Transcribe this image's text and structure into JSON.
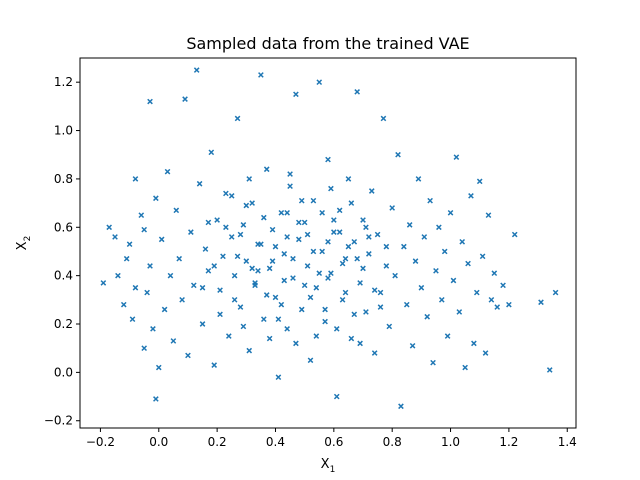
{
  "chart_data": {
    "type": "scatter",
    "title": "Sampled data from the trained VAE",
    "xlabel": {
      "base": "X",
      "sub": "1"
    },
    "ylabel": {
      "base": "X",
      "sub": "2"
    },
    "xlim": [
      -0.27,
      1.43
    ],
    "ylim": [
      -0.23,
      1.3
    ],
    "xticks": [
      -0.2,
      0.0,
      0.2,
      0.4,
      0.6,
      0.8,
      1.0,
      1.2,
      1.4
    ],
    "xtick_labels": [
      "−0.2",
      "0.0",
      "0.2",
      "0.4",
      "0.6",
      "0.8",
      "1.0",
      "1.2",
      "1.4"
    ],
    "yticks": [
      -0.2,
      0.0,
      0.2,
      0.4,
      0.6,
      0.8,
      1.0,
      1.2
    ],
    "ytick_labels": [
      "−0.2",
      "0.0",
      "0.2",
      "0.4",
      "0.6",
      "0.8",
      "1.0",
      "1.2"
    ],
    "grid": false,
    "marker": "x",
    "color": "#1f77b4",
    "series": [
      {
        "points": [
          [
            -0.19,
            0.37
          ],
          [
            -0.17,
            0.6
          ],
          [
            -0.15,
            0.56
          ],
          [
            -0.14,
            0.4
          ],
          [
            -0.12,
            0.28
          ],
          [
            -0.11,
            0.47
          ],
          [
            -0.1,
            0.53
          ],
          [
            -0.09,
            0.22
          ],
          [
            -0.08,
            0.8
          ],
          [
            -0.08,
            0.35
          ],
          [
            -0.06,
            0.65
          ],
          [
            -0.05,
            0.59
          ],
          [
            -0.05,
            0.1
          ],
          [
            -0.04,
            0.33
          ],
          [
            -0.03,
            1.12
          ],
          [
            -0.03,
            0.44
          ],
          [
            -0.02,
            0.18
          ],
          [
            -0.01,
            -0.11
          ],
          [
            -0.01,
            0.72
          ],
          [
            0.0,
            0.02
          ],
          [
            0.01,
            0.55
          ],
          [
            0.02,
            0.26
          ],
          [
            0.03,
            0.83
          ],
          [
            0.04,
            0.4
          ],
          [
            0.05,
            0.13
          ],
          [
            0.06,
            0.67
          ],
          [
            0.07,
            0.47
          ],
          [
            0.08,
            0.3
          ],
          [
            0.09,
            1.13
          ],
          [
            0.1,
            0.07
          ],
          [
            0.11,
            0.58
          ],
          [
            0.12,
            0.36
          ],
          [
            0.13,
            1.25
          ],
          [
            0.14,
            0.78
          ],
          [
            0.15,
            0.2
          ],
          [
            0.16,
            0.51
          ],
          [
            0.17,
            0.42
          ],
          [
            0.18,
            0.91
          ],
          [
            0.19,
            0.03
          ],
          [
            0.2,
            0.63
          ],
          [
            0.21,
            0.34
          ],
          [
            0.22,
            0.48
          ],
          [
            0.23,
            0.74
          ],
          [
            0.24,
            0.15
          ],
          [
            0.25,
            0.56
          ],
          [
            0.26,
            0.4
          ],
          [
            0.27,
            1.05
          ],
          [
            0.28,
            0.27
          ],
          [
            0.29,
            0.61
          ],
          [
            0.3,
            0.46
          ],
          [
            0.31,
            0.09
          ],
          [
            0.32,
            0.7
          ],
          [
            0.33,
            0.37
          ],
          [
            0.34,
            0.53
          ],
          [
            0.35,
            1.23
          ],
          [
            0.36,
            0.22
          ],
          [
            0.37,
            0.84
          ],
          [
            0.38,
            0.43
          ],
          [
            0.39,
            0.59
          ],
          [
            0.4,
            0.31
          ],
          [
            0.41,
            -0.02
          ],
          [
            0.42,
            0.66
          ],
          [
            0.43,
            0.49
          ],
          [
            0.44,
            0.18
          ],
          [
            0.45,
            0.77
          ],
          [
            0.46,
            0.39
          ],
          [
            0.47,
            1.15
          ],
          [
            0.48,
            0.55
          ],
          [
            0.49,
            0.26
          ],
          [
            0.5,
            0.62
          ],
          [
            0.51,
            0.44
          ],
          [
            0.52,
            0.05
          ],
          [
            0.53,
            0.71
          ],
          [
            0.54,
            0.35
          ],
          [
            0.55,
            1.2
          ],
          [
            0.56,
            0.5
          ],
          [
            0.57,
            0.21
          ],
          [
            0.58,
            0.88
          ],
          [
            0.59,
            0.41
          ],
          [
            0.6,
            0.58
          ],
          [
            0.61,
            -0.1
          ],
          [
            0.62,
            0.67
          ],
          [
            0.63,
            0.3
          ],
          [
            0.64,
            0.47
          ],
          [
            0.65,
            0.8
          ],
          [
            0.66,
            0.14
          ],
          [
            0.67,
            0.54
          ],
          [
            0.68,
            1.16
          ],
          [
            0.69,
            0.37
          ],
          [
            0.7,
            0.63
          ],
          [
            0.71,
            0.25
          ],
          [
            0.72,
            0.49
          ],
          [
            0.73,
            0.75
          ],
          [
            0.74,
            0.08
          ],
          [
            0.75,
            0.57
          ],
          [
            0.76,
            0.33
          ],
          [
            0.77,
            1.05
          ],
          [
            0.78,
            0.44
          ],
          [
            0.79,
            0.19
          ],
          [
            0.8,
            0.68
          ],
          [
            0.81,
            0.4
          ],
          [
            0.82,
            0.9
          ],
          [
            0.83,
            -0.14
          ],
          [
            0.84,
            0.52
          ],
          [
            0.85,
            0.28
          ],
          [
            0.86,
            0.61
          ],
          [
            0.87,
            0.11
          ],
          [
            0.88,
            0.46
          ],
          [
            0.89,
            0.8
          ],
          [
            0.9,
            0.35
          ],
          [
            0.91,
            0.56
          ],
          [
            0.92,
            0.23
          ],
          [
            0.93,
            0.71
          ],
          [
            0.94,
            0.04
          ],
          [
            0.95,
            0.42
          ],
          [
            0.96,
            0.6
          ],
          [
            0.97,
            0.3
          ],
          [
            0.98,
            0.5
          ],
          [
            0.99,
            0.15
          ],
          [
            1.0,
            0.66
          ],
          [
            1.01,
            0.38
          ],
          [
            1.02,
            0.89
          ],
          [
            1.03,
            0.25
          ],
          [
            1.04,
            0.54
          ],
          [
            1.05,
            0.02
          ],
          [
            1.06,
            0.45
          ],
          [
            1.07,
            0.73
          ],
          [
            1.08,
            0.12
          ],
          [
            1.09,
            0.33
          ],
          [
            1.1,
            0.79
          ],
          [
            1.11,
            0.48
          ],
          [
            1.12,
            0.08
          ],
          [
            1.13,
            0.65
          ],
          [
            1.14,
            0.3
          ],
          [
            1.15,
            0.41
          ],
          [
            1.16,
            0.27
          ],
          [
            1.18,
            0.36
          ],
          [
            1.2,
            0.28
          ],
          [
            1.22,
            0.57
          ],
          [
            1.31,
            0.29
          ],
          [
            1.34,
            0.01
          ],
          [
            1.36,
            0.33
          ],
          [
            0.44,
            0.56
          ],
          [
            0.52,
            0.31
          ],
          [
            0.36,
            0.64
          ],
          [
            0.58,
            0.39
          ],
          [
            0.27,
            0.48
          ],
          [
            0.65,
            0.52
          ],
          [
            0.41,
            0.22
          ],
          [
            0.49,
            0.71
          ],
          [
            0.33,
            0.36
          ],
          [
            0.61,
            0.18
          ],
          [
            0.7,
            0.43
          ],
          [
            0.23,
            0.6
          ],
          [
            0.56,
            0.66
          ],
          [
            0.39,
            0.46
          ],
          [
            0.47,
            0.12
          ],
          [
            0.62,
            0.58
          ],
          [
            0.31,
            0.8
          ],
          [
            0.74,
            0.34
          ],
          [
            0.19,
            0.44
          ],
          [
            0.53,
            0.5
          ],
          [
            0.43,
            0.38
          ],
          [
            0.67,
            0.24
          ],
          [
            0.35,
            0.53
          ],
          [
            0.59,
            0.76
          ],
          [
            0.26,
            0.3
          ],
          [
            0.48,
            0.62
          ],
          [
            0.72,
            0.56
          ],
          [
            0.38,
            0.14
          ],
          [
            0.55,
            0.41
          ],
          [
            0.3,
            0.69
          ],
          [
            0.64,
            0.33
          ],
          [
            0.45,
            0.82
          ],
          [
            0.21,
            0.24
          ],
          [
            0.51,
            0.57
          ],
          [
            0.68,
            0.47
          ],
          [
            0.34,
            0.42
          ],
          [
            0.6,
            0.63
          ],
          [
            0.42,
            0.28
          ],
          [
            0.15,
            0.35
          ],
          [
            0.78,
            0.52
          ],
          [
            0.28,
            0.57
          ],
          [
            0.57,
            0.26
          ],
          [
            0.46,
            0.47
          ],
          [
            0.66,
            0.7
          ],
          [
            0.37,
            0.32
          ],
          [
            0.54,
            0.15
          ],
          [
            0.25,
            0.73
          ],
          [
            0.71,
            0.6
          ],
          [
            0.4,
            0.52
          ],
          [
            0.63,
            0.45
          ],
          [
            0.29,
            0.19
          ],
          [
            0.5,
            0.36
          ],
          [
            0.17,
            0.62
          ],
          [
            0.76,
            0.27
          ],
          [
            0.44,
            0.66
          ],
          [
            0.58,
            0.54
          ],
          [
            0.32,
            0.43
          ],
          [
            0.69,
            0.12
          ]
        ]
      }
    ]
  }
}
